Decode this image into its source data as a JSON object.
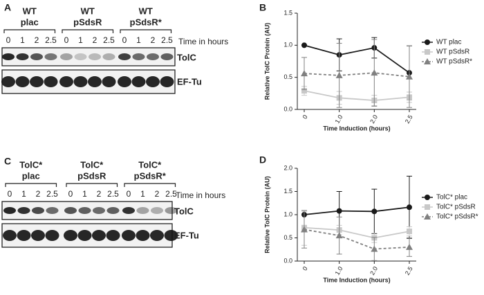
{
  "blots": [
    {
      "panel": "A",
      "groups": [
        {
          "title": [
            "WT",
            "plac"
          ],
          "lanes": [
            "0",
            "1",
            "2",
            "2.5"
          ]
        },
        {
          "title": [
            "WT",
            "pSdsR"
          ],
          "lanes": [
            "0",
            "1",
            "2",
            "2.5"
          ]
        },
        {
          "title": [
            "WT",
            "pSdsR*"
          ],
          "lanes": [
            "0",
            "1",
            "2",
            "2.5"
          ]
        }
      ],
      "time_label": "Time in hours",
      "rows": [
        "TolC",
        "EF-Tu"
      ]
    },
    {
      "panel": "C",
      "groups": [
        {
          "title": [
            "TolC*",
            "plac"
          ],
          "lanes": [
            "0",
            "1",
            "2",
            "2.5"
          ]
        },
        {
          "title": [
            "TolC*",
            "pSdsR"
          ],
          "lanes": [
            "0",
            "1",
            "2",
            "2.5"
          ]
        },
        {
          "title": [
            "TolC*",
            "pSdsR*"
          ],
          "lanes": [
            "0",
            "1",
            "2",
            "2.5"
          ]
        }
      ],
      "time_label": "Time in hours",
      "rows": [
        "TolC",
        "EF-Tu"
      ]
    }
  ],
  "chart_data": [
    {
      "type": "line",
      "panel": "B",
      "xlabel": "Time Induction (hours)",
      "ylabel": "Relative TolC Protein (AU)",
      "categories": [
        "0",
        "1.0",
        "2.0",
        "2.5"
      ],
      "ylim": [
        0,
        1.5
      ],
      "yticks": [
        {
          "value": 0,
          "label": "0.0"
        },
        0.5,
        {
          "value": 1,
          "label": "1.0"
        },
        1.5
      ],
      "legend": "right",
      "series": [
        {
          "name": "WT plac",
          "color": "#1a1a1a",
          "marker": "circle",
          "dashed": false,
          "values": [
            1.0,
            0.85,
            0.96,
            0.57
          ],
          "errors": [
            0.0,
            0.25,
            0.16,
            0.42
          ]
        },
        {
          "name": "WT pSdsR",
          "color": "#c8c8c8",
          "marker": "square",
          "dashed": false,
          "values": [
            0.29,
            0.18,
            0.14,
            0.19
          ],
          "errors": [
            0.07,
            0.1,
            0.08,
            0.08
          ]
        },
        {
          "name": "WT pSdsR*",
          "color": "#808080",
          "marker": "triangle",
          "dashed": true,
          "values": [
            0.56,
            0.53,
            0.57,
            0.51
          ],
          "errors": [
            0.25,
            0.5,
            0.52,
            0.48
          ]
        }
      ]
    },
    {
      "type": "line",
      "panel": "D",
      "xlabel": "Time Induction (hours)",
      "ylabel": "Relative TolC Protein (AU)",
      "categories": [
        "0",
        "1.0",
        "2.0",
        "2.5"
      ],
      "ylim": [
        0,
        2
      ],
      "yticks": [
        {
          "value": 0,
          "label": "0.0"
        },
        0.5,
        {
          "value": 1,
          "label": "1.0"
        },
        1.5,
        {
          "value": 2,
          "label": "2.0"
        }
      ],
      "legend": "right",
      "series": [
        {
          "name": "TolC* plac",
          "color": "#1a1a1a",
          "marker": "circle",
          "dashed": false,
          "values": [
            1.0,
            1.08,
            1.07,
            1.16
          ],
          "errors": [
            0.0,
            0.42,
            0.48,
            0.67
          ]
        },
        {
          "name": "TolC* pSdsR",
          "color": "#c8c8c8",
          "marker": "square",
          "dashed": false,
          "values": [
            0.72,
            0.67,
            0.5,
            0.64
          ],
          "errors": [
            0.38,
            0.1,
            0.1,
            0.1
          ]
        },
        {
          "name": "TolC* pSdsR*",
          "color": "#808080",
          "marker": "triangle",
          "dashed": true,
          "values": [
            0.68,
            0.55,
            0.26,
            0.3
          ],
          "errors": [
            0.4,
            0.4,
            0.25,
            0.2
          ]
        }
      ]
    }
  ]
}
